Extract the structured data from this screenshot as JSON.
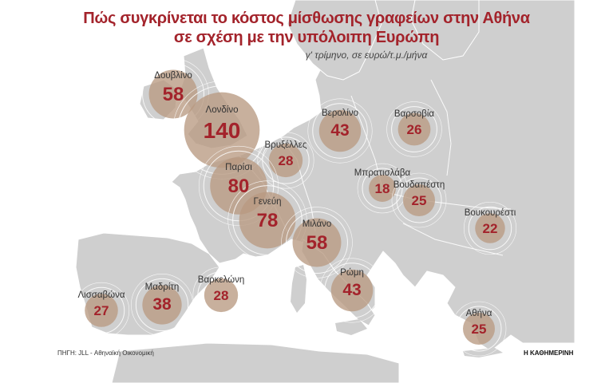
{
  "header": {
    "title_line1": "Πώς συγκρίνεται το κόστος μίσθωσης γραφείων στην Αθήνα",
    "title_line2": "σε σχέση με την υπόλοιπη Ευρώπη",
    "subtitle": "γ' τρίμηνο, σε ευρώ/τ.μ./μήνα"
  },
  "cities": [
    {
      "name": "Δουβλίνο",
      "value": "58"
    },
    {
      "name": "Λονδίνο",
      "value": "140"
    },
    {
      "name": "Βρυξέλλες",
      "value": "28"
    },
    {
      "name": "Παρίσι",
      "value": "80"
    },
    {
      "name": "Γενεύη",
      "value": "78"
    },
    {
      "name": "Βερολίνο",
      "value": "43"
    },
    {
      "name": "Βαρσοβία",
      "value": "26"
    },
    {
      "name": "Μπρατισλάβα",
      "value": "18"
    },
    {
      "name": "Βουδαπέστη",
      "value": "25"
    },
    {
      "name": "Βουκουρέστι",
      "value": "22"
    },
    {
      "name": "Μιλάνο",
      "value": "58"
    },
    {
      "name": "Ρώμη",
      "value": "43"
    },
    {
      "name": "Βαρκελώνη",
      "value": "28"
    },
    {
      "name": "Μαδρίτη",
      "value": "38"
    },
    {
      "name": "Λισσαβώνα",
      "value": "27"
    },
    {
      "name": "Αθήνα",
      "value": "25"
    }
  ],
  "footer": {
    "source": "ΠΗΓΗ: JLL - Αθηναϊκή Οικονομική",
    "brand": "Η ΚΑΘΗΜΕΡΙΝΗ"
  },
  "colors": {
    "land": "#cfcfcf",
    "sea": "#ffffff",
    "bubble": "#b89a82",
    "accent": "#a3232b"
  }
}
